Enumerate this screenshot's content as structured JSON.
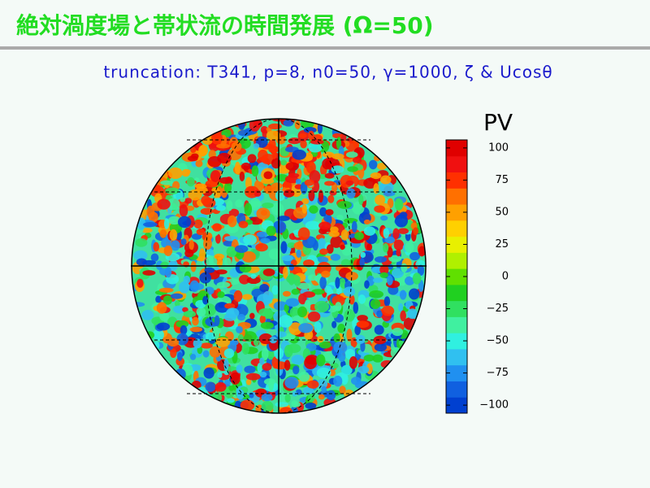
{
  "header": {
    "title": "絶対渦度場と帯状流の時間発展 (Ω=50)",
    "subtitle": "truncation: T341, p=8, n0=50, γ=1000, ζ & Ucosθ"
  },
  "colorbar": {
    "label": "PV",
    "lim": [
      -106.25,
      106.25
    ],
    "ticks": [
      {
        "value": -100,
        "label": "−100"
      },
      {
        "value": -75,
        "label": "−75"
      },
      {
        "value": -50,
        "label": "−50"
      },
      {
        "value": -25,
        "label": "−25"
      },
      0,
      25,
      50,
      75,
      100
    ],
    "colors": [
      "#0040d0",
      "#1060e0",
      "#2090f0",
      "#30c0f0",
      "#30f0e0",
      "#40f0a0",
      "#30e060",
      "#20d020",
      "#60e000",
      "#b0f000",
      "#e8f000",
      "#ffd000",
      "#ffa000",
      "#ff7000",
      "#ff3000",
      "#f01010",
      "#e00000"
    ]
  }
}
